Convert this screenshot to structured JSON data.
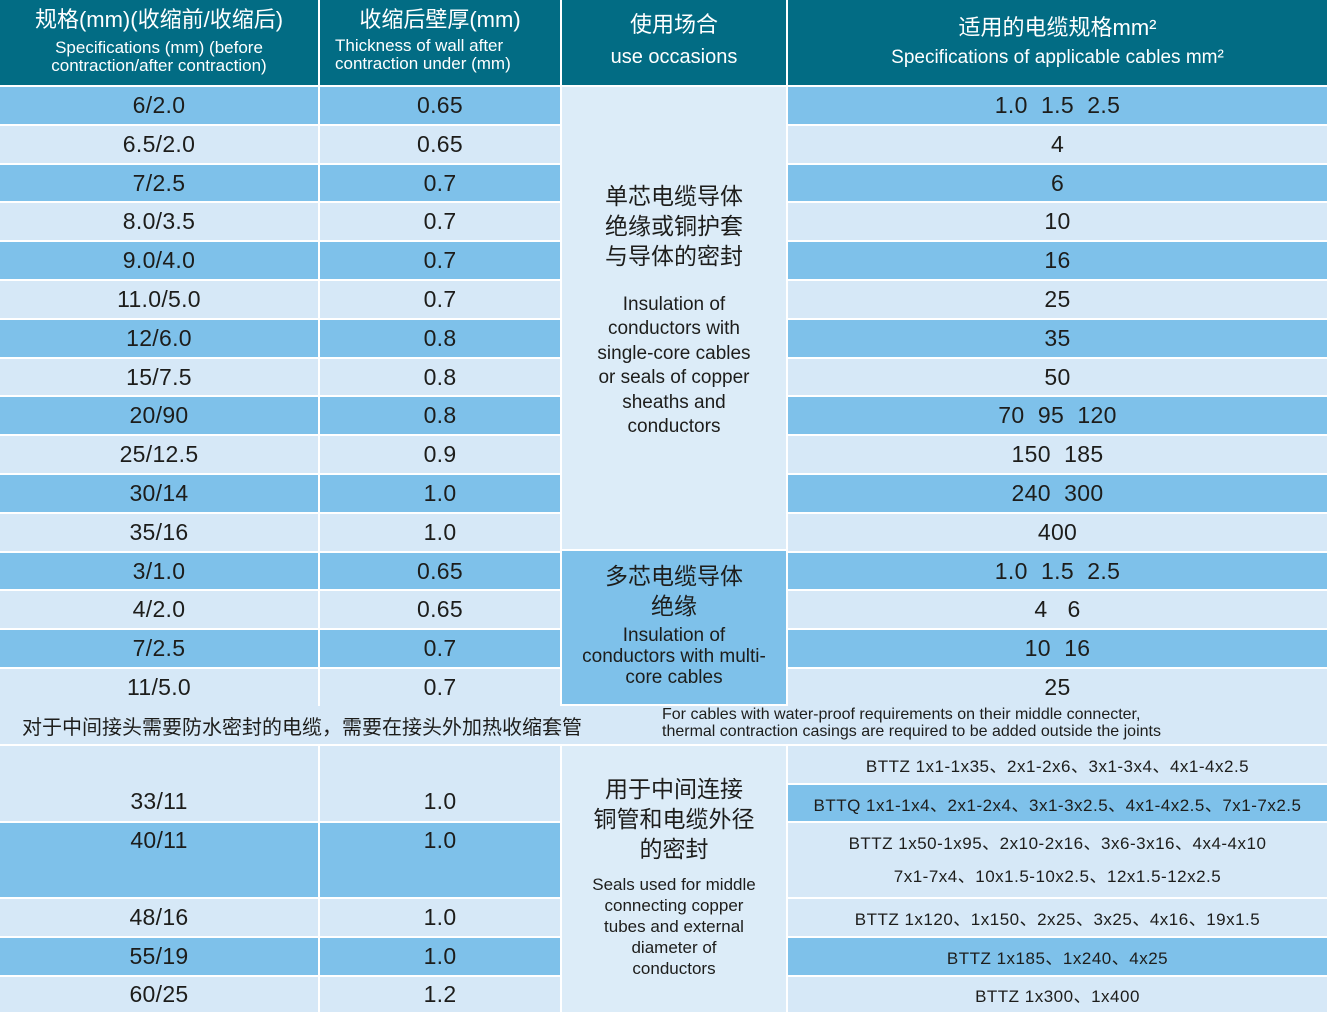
{
  "header": {
    "spec_zh": "规格(mm)(收缩前/收缩后)",
    "spec_en": "Specifications (mm) (before contraction/after contraction)",
    "thick_zh": "收缩后壁厚(mm)",
    "thick_en": "Thickness of wall after contraction under  (mm)",
    "use_zh": "使用场合",
    "use_en": "use occasions",
    "cable_zh": "适用的电缆规格mm²",
    "cable_en": "Specifications of applicable cables mm²"
  },
  "rows": [
    {
      "spec": "6/2.0",
      "thick": "0.65",
      "cable": "1.0  1.5  2.5"
    },
    {
      "spec": "6.5/2.0",
      "thick": "0.65",
      "cable": "4"
    },
    {
      "spec": "7/2.5",
      "thick": "0.7",
      "cable": "6"
    },
    {
      "spec": "8.0/3.5",
      "thick": "0.7",
      "cable": "10"
    },
    {
      "spec": "9.0/4.0",
      "thick": "0.7",
      "cable": "16"
    },
    {
      "spec": "11.0/5.0",
      "thick": "0.7",
      "cable": "25"
    },
    {
      "spec": "12/6.0",
      "thick": "0.8",
      "cable": "35"
    },
    {
      "spec": "15/7.5",
      "thick": "0.8",
      "cable": "50"
    },
    {
      "spec": "20/90",
      "thick": "0.8",
      "cable": "70  95  120"
    },
    {
      "spec": "25/12.5",
      "thick": "0.9",
      "cable": "150  185"
    },
    {
      "spec": "30/14",
      "thick": "1.0",
      "cable": "240  300"
    },
    {
      "spec": "35/16",
      "thick": "1.0",
      "cable": "400"
    },
    {
      "spec": "3/1.0",
      "thick": "0.65",
      "cable": "1.0  1.5  2.5"
    },
    {
      "spec": "4/2.0",
      "thick": "0.65",
      "cable": "4   6"
    },
    {
      "spec": "7/2.5",
      "thick": "0.7",
      "cable": "10  16"
    },
    {
      "spec": "11/5.0",
      "thick": "0.7",
      "cable": "25"
    }
  ],
  "occasion1": {
    "zh": [
      "单芯电缆导体",
      "绝缘或铜护套",
      "与导体的密封"
    ],
    "en": [
      "Insulation of",
      "conductors with",
      "single-core cables",
      "or seals of copper",
      "sheaths and",
      "conductors"
    ]
  },
  "occasion2": {
    "zh": [
      "多芯电缆导体",
      "绝缘"
    ],
    "en": [
      "Insulation of",
      "conductors with multi-",
      "core cables"
    ]
  },
  "note": {
    "zh": "对于中间接头需要防水密封的电缆，需要在接头外加热收缩套管",
    "en": [
      "For cables with water-proof requirements on their middle connecter,",
      "thermal contraction casings are required to be added outside the joints"
    ]
  },
  "joint_rows": [
    {
      "spec": "33/11",
      "thick": "1.0"
    },
    {
      "spec": "40/11",
      "thick": "1.0"
    },
    {
      "spec": "48/16",
      "thick": "1.0"
    },
    {
      "spec": "55/19",
      "thick": "1.0"
    },
    {
      "spec": "60/25",
      "thick": "1.2"
    }
  ],
  "occasion3": {
    "zh": [
      "用于中间连接",
      "铜管和电缆外径",
      "的密封"
    ],
    "en": [
      "Seals used for middle",
      "connecting copper",
      "tubes and external",
      "diameter of",
      "conductors"
    ]
  },
  "joint_cables": [
    "BTTZ  1x1-1x35、2x1-2x6、3x1-3x4、4x1-4x2.5",
    "BTTQ  1x1-1x4、2x1-2x4、3x1-3x2.5、4x1-4x2.5、7x1-7x2.5",
    "BTTZ  1x50-1x95、2x10-2x16、3x6-3x16、4x4-4x10",
    "7x1-7x4、10x1.5-10x2.5、12x1.5-12x2.5",
    "BTTZ  1x120、1x150、2x25、3x25、4x16、19x1.5",
    "BTTZ  1x185、1x240、4x25",
    "BTTZ  1x300、1x400"
  ]
}
